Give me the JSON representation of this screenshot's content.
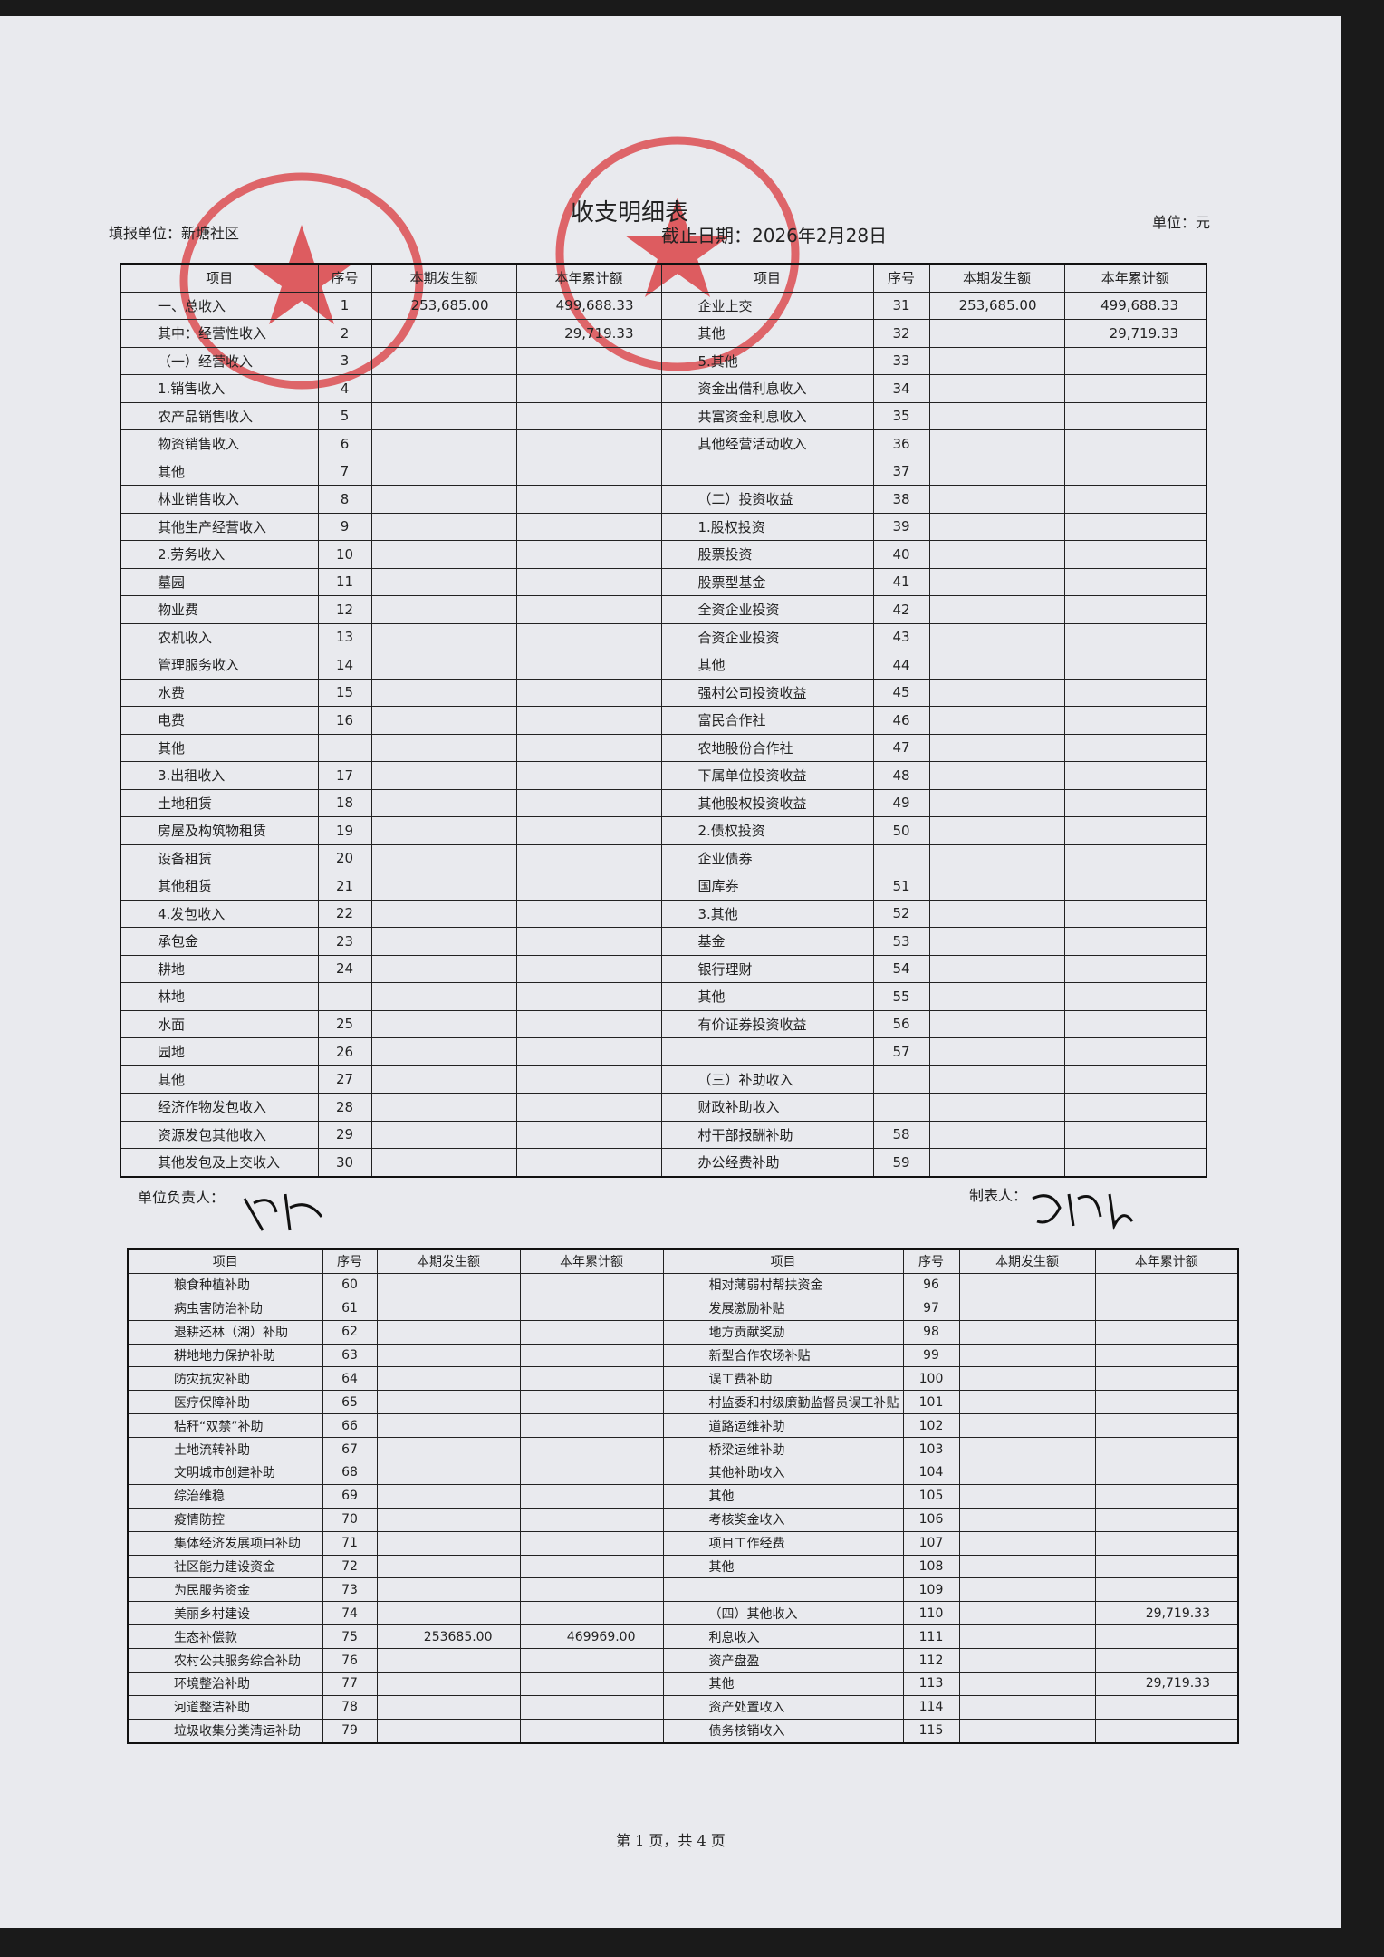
{
  "header": {
    "title": "收支明细表",
    "unit_label": "填报单位：新塘社区",
    "date_label": "截止日期：2026年2月28日",
    "currency_label": "单位：元"
  },
  "table1": {
    "columns": [
      "项目",
      "序号",
      "本期发生额",
      "本年累计额",
      "项目",
      "序号",
      "本期发生额",
      "本年累计额"
    ],
    "rows": [
      [
        "一、总收入",
        1,
        "253,685.00",
        "499,688.33",
        "企业上交",
        31,
        "253,685.00",
        "499,688.33"
      ],
      [
        "其中：经营性收入",
        2,
        null,
        "29,719.33",
        "其他",
        32,
        null,
        "29,719.33"
      ],
      [
        "（一）经营收入",
        3,
        null,
        null,
        "5.其他",
        33,
        null,
        null
      ],
      [
        "1.销售收入",
        4,
        null,
        null,
        "资金出借利息收入",
        34,
        null,
        null
      ],
      [
        "农产品销售收入",
        5,
        null,
        null,
        "共富资金利息收入",
        35,
        null,
        null
      ],
      [
        "物资销售收入",
        6,
        null,
        null,
        "其他经营活动收入",
        36,
        null,
        null
      ],
      [
        "其他",
        7,
        null,
        null,
        null,
        37,
        null,
        null
      ],
      [
        "林业销售收入",
        8,
        null,
        null,
        "（二）投资收益",
        38,
        null,
        null
      ],
      [
        "其他生产经营收入",
        9,
        null,
        null,
        "1.股权投资",
        39,
        null,
        null
      ],
      [
        "2.劳务收入",
        10,
        null,
        null,
        "股票投资",
        40,
        null,
        null
      ],
      [
        "墓园",
        11,
        null,
        null,
        "股票型基金",
        41,
        null,
        null
      ],
      [
        "物业费",
        12,
        null,
        null,
        "全资企业投资",
        42,
        null,
        null
      ],
      [
        "农机收入",
        13,
        null,
        null,
        "合资企业投资",
        43,
        null,
        null
      ],
      [
        "管理服务收入",
        14,
        null,
        null,
        "其他",
        44,
        null,
        null
      ],
      [
        "水费",
        15,
        null,
        null,
        "强村公司投资收益",
        45,
        null,
        null
      ],
      [
        "电费",
        16,
        null,
        null,
        "富民合作社",
        46,
        null,
        null
      ],
      [
        "其他",
        null,
        null,
        null,
        "农地股份合作社",
        47,
        null,
        null
      ],
      [
        "3.出租收入",
        17,
        null,
        null,
        "下属单位投资收益",
        48,
        null,
        null
      ],
      [
        "土地租赁",
        18,
        null,
        null,
        "其他股权投资收益",
        49,
        null,
        null
      ],
      [
        "房屋及构筑物租赁",
        19,
        null,
        null,
        "2.债权投资",
        50,
        null,
        null
      ],
      [
        "设备租赁",
        20,
        null,
        null,
        "企业债券",
        null,
        null,
        null
      ],
      [
        "其他租赁",
        21,
        null,
        null,
        "国库券",
        51,
        null,
        null
      ],
      [
        "4.发包收入",
        22,
        null,
        null,
        "3.其他",
        52,
        null,
        null
      ],
      [
        "承包金",
        23,
        null,
        null,
        "基金",
        53,
        null,
        null
      ],
      [
        "耕地",
        24,
        null,
        null,
        "银行理财",
        54,
        null,
        null
      ],
      [
        "林地",
        null,
        null,
        null,
        "其他",
        55,
        null,
        null
      ],
      [
        "水面",
        25,
        null,
        null,
        "有价证券投资收益",
        56,
        null,
        null
      ],
      [
        "园地",
        26,
        null,
        null,
        null,
        57,
        null,
        null
      ],
      [
        "其他",
        27,
        null,
        null,
        "（三）补助收入",
        null,
        null,
        null
      ],
      [
        "经济作物发包收入",
        28,
        null,
        null,
        "财政补助收入",
        null,
        null,
        null
      ],
      [
        "资源发包其他收入",
        29,
        null,
        null,
        "村干部报酬补助",
        58,
        null,
        null
      ],
      [
        "其他发包及上交收入",
        30,
        null,
        null,
        "办公经费补助",
        59,
        null,
        null
      ]
    ]
  },
  "signatures": {
    "leader_label": "单位负责人：",
    "preparer_label": "制表人："
  },
  "table2": {
    "columns": [
      "项目",
      "序号",
      "本期发生额",
      "本年累计额",
      "项目",
      "序号",
      "本期发生额",
      "本年累计额"
    ],
    "rows": [
      [
        "粮食种植补助",
        60,
        null,
        null,
        "相对薄弱村帮扶资金",
        96,
        null,
        null
      ],
      [
        "病虫害防治补助",
        61,
        null,
        null,
        "发展激励补贴",
        97,
        null,
        null
      ],
      [
        "退耕还林（湖）补助",
        62,
        null,
        null,
        "地方贡献奖励",
        98,
        null,
        null
      ],
      [
        "耕地地力保护补助",
        63,
        null,
        null,
        "新型合作农场补贴",
        99,
        null,
        null
      ],
      [
        "防灾抗灾补助",
        64,
        null,
        null,
        "误工费补助",
        100,
        null,
        null
      ],
      [
        "医疗保障补助",
        65,
        null,
        null,
        "村监委和村级廉勤监督员误工补贴",
        101,
        null,
        null
      ],
      [
        "秸秆“双禁”补助",
        66,
        null,
        null,
        "道路运维补助",
        102,
        null,
        null
      ],
      [
        "土地流转补助",
        67,
        null,
        null,
        "桥梁运维补助",
        103,
        null,
        null
      ],
      [
        "文明城市创建补助",
        68,
        null,
        null,
        "其他补助收入",
        104,
        null,
        null
      ],
      [
        "综治维稳",
        69,
        null,
        null,
        "其他",
        105,
        null,
        null
      ],
      [
        "疫情防控",
        70,
        null,
        null,
        "考核奖金收入",
        106,
        null,
        null
      ],
      [
        "集体经济发展项目补助",
        71,
        null,
        null,
        "项目工作经费",
        107,
        null,
        null
      ],
      [
        "社区能力建设资金",
        72,
        null,
        null,
        "其他",
        108,
        null,
        null
      ],
      [
        "为民服务资金",
        73,
        null,
        null,
        null,
        109,
        null,
        null
      ],
      [
        "美丽乡村建设",
        74,
        null,
        null,
        "（四）其他收入",
        110,
        null,
        "29,719.33"
      ],
      [
        "生态补偿款",
        75,
        "253685.00",
        "469969.00",
        "利息收入",
        111,
        null,
        null
      ],
      [
        "农村公共服务综合补助",
        76,
        null,
        null,
        "资产盘盈",
        112,
        null,
        null
      ],
      [
        "环境整治补助",
        77,
        null,
        null,
        "其他",
        113,
        null,
        "29,719.33"
      ],
      [
        "河道整洁补助",
        78,
        null,
        null,
        "资产处置收入",
        114,
        null,
        null
      ],
      [
        "垃圾收集分类清运补助",
        79,
        null,
        null,
        "债务核销收入",
        115,
        null,
        null
      ]
    ]
  },
  "footer": {
    "page": "第 1 页，共 4 页"
  }
}
